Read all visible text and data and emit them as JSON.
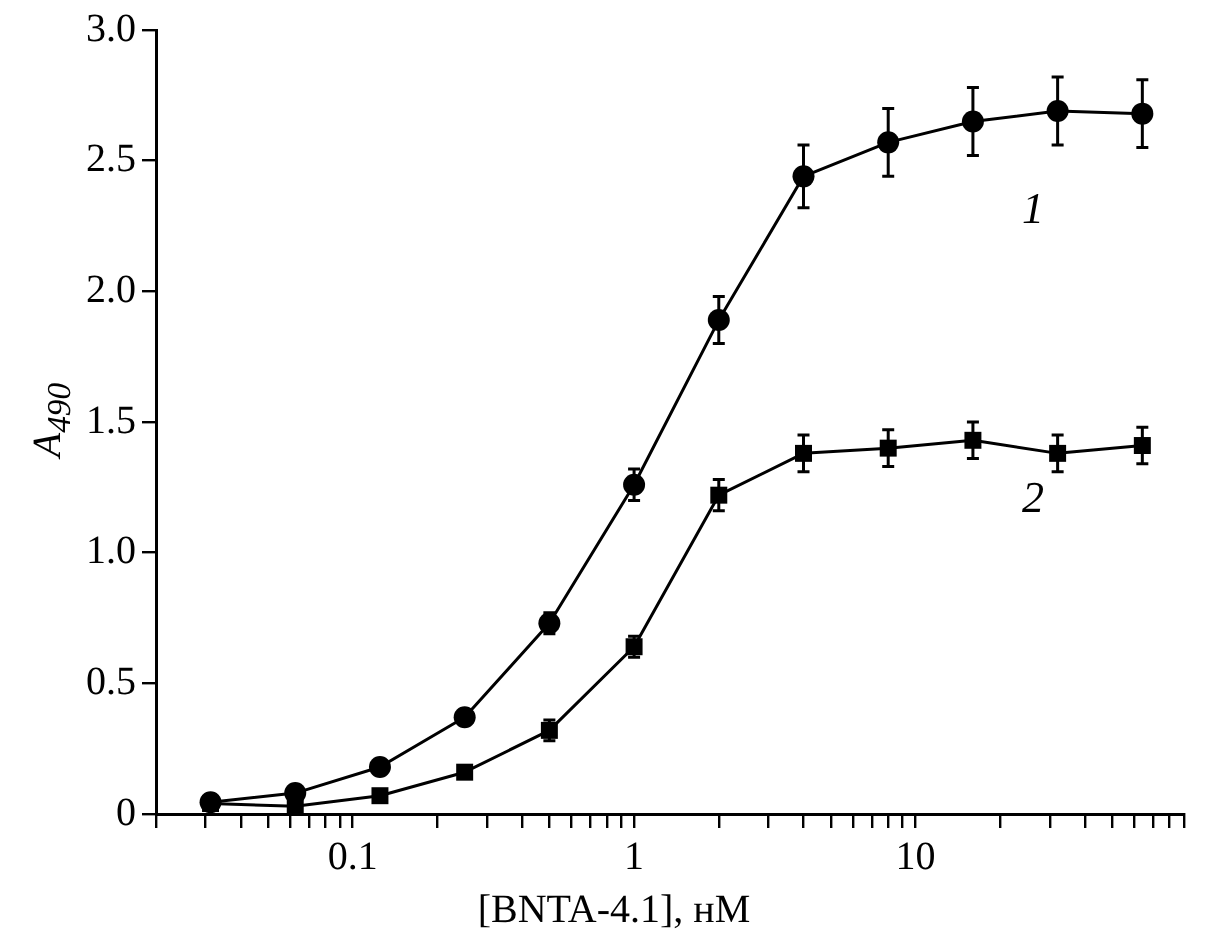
{
  "chart_data": {
    "type": "line",
    "xlabel": "[BNTA-4.1], нМ",
    "ylabel": "A$_{490}$",
    "x": [
      0.03125,
      0.0625,
      0.125,
      0.25,
      0.5,
      1,
      2,
      4,
      8,
      16,
      32,
      64
    ],
    "series": [
      {
        "name": "1",
        "color": "#000000",
        "marker": "circle",
        "values": [
          0.045,
          0.08,
          0.18,
          0.37,
          0.73,
          1.26,
          1.89,
          2.44,
          2.57,
          2.65,
          2.69,
          2.68
        ],
        "errors": [
          null,
          null,
          null,
          null,
          0.04,
          0.06,
          0.09,
          0.12,
          0.13,
          0.13,
          0.13,
          0.13
        ]
      },
      {
        "name": "2",
        "color": "#000000",
        "marker": "square",
        "values": [
          0.04,
          0.03,
          0.07,
          0.16,
          0.32,
          0.64,
          1.22,
          1.38,
          1.4,
          1.43,
          1.38,
          1.41
        ],
        "errors": [
          null,
          null,
          null,
          null,
          0.04,
          0.04,
          0.06,
          0.07,
          0.07,
          0.07,
          0.07,
          0.07
        ]
      }
    ],
    "log": "x",
    "xlim": [
      0.02,
      90
    ],
    "xticks": [
      {
        "value": 0.02,
        "label": null
      },
      {
        "value": 0.03,
        "label": null
      },
      {
        "value": 0.04,
        "label": null
      },
      {
        "value": 0.05,
        "label": null
      },
      {
        "value": 0.06,
        "label": null
      },
      {
        "value": 0.07,
        "label": null
      },
      {
        "value": 0.08,
        "label": null
      },
      {
        "value": 0.09,
        "label": null
      },
      0.1,
      {
        "value": 0.2,
        "label": null
      },
      {
        "value": 0.3,
        "label": null
      },
      {
        "value": 0.4,
        "label": null
      },
      {
        "value": 0.5,
        "label": null
      },
      {
        "value": 0.6,
        "label": null
      },
      {
        "value": 0.7,
        "label": null
      },
      {
        "value": 0.8,
        "label": null
      },
      {
        "value": 0.9,
        "label": null
      },
      1,
      {
        "value": 2,
        "label": null
      },
      {
        "value": 3,
        "label": null
      },
      {
        "value": 4,
        "label": null
      },
      {
        "value": 5,
        "label": null
      },
      {
        "value": 6,
        "label": null
      },
      {
        "value": 7,
        "label": null
      },
      {
        "value": 8,
        "label": null
      },
      {
        "value": 9,
        "label": null
      },
      10,
      {
        "value": 20,
        "label": null
      },
      {
        "value": 30,
        "label": null
      },
      {
        "value": 40,
        "label": null
      },
      {
        "value": 50,
        "label": null
      },
      {
        "value": 60,
        "label": null
      },
      {
        "value": 70,
        "label": null
      },
      {
        "value": 80,
        "label": null
      },
      {
        "value": 90,
        "label": null
      }
    ],
    "ylim": [
      0,
      3
    ],
    "yticks": [
      0,
      0.5,
      {
        "value": 1,
        "label": "1.0"
      },
      1.5,
      {
        "value": 2,
        "label": "2.0"
      },
      2.5,
      {
        "value": 3,
        "label": "3.0"
      }
    ],
    "grid": false,
    "legend": false,
    "line_style": "solid"
  }
}
